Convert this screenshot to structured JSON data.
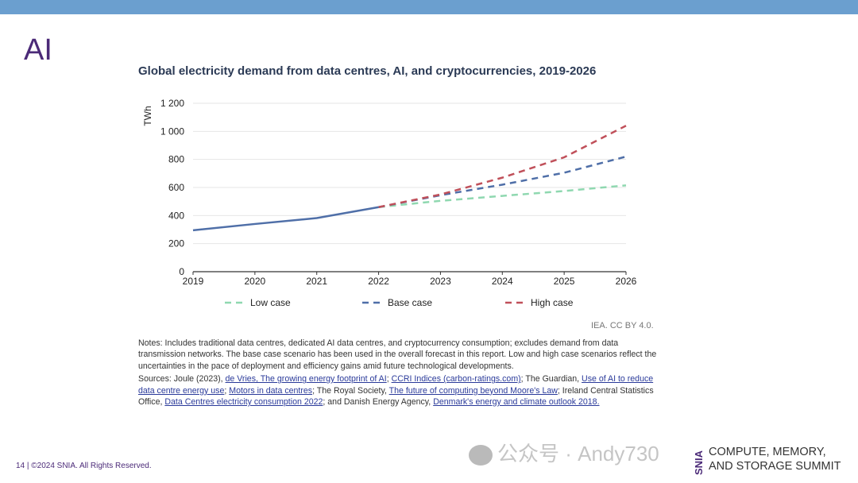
{
  "slide": {
    "title": "AI",
    "footer": "14 | ©2024 SNIA. All Rights Reserved."
  },
  "colors": {
    "topbar": "#6b9fcf",
    "history": "#4f6fa8",
    "low": "#8fd8b0",
    "base": "#4f6fa8",
    "high": "#c0505a"
  },
  "chart_data": {
    "type": "line",
    "title": "Global electricity demand from data centres, AI, and cryptocurrencies, 2019-2026",
    "ylabel": "TWh",
    "xlabel": "",
    "ylim": [
      0,
      1200
    ],
    "yticks": [
      "0",
      "200",
      "400",
      "600",
      "800",
      "1 000",
      "1 200"
    ],
    "ytick_values": [
      0,
      200,
      400,
      600,
      800,
      1000,
      1200
    ],
    "x": [
      2019,
      2020,
      2021,
      2022,
      2023,
      2024,
      2025,
      2026
    ],
    "grid": true,
    "legend_position": "bottom",
    "history": {
      "x": [
        2019,
        2020,
        2021,
        2022
      ],
      "values": [
        295,
        340,
        382,
        460
      ]
    },
    "series": [
      {
        "name": "Low case",
        "x": [
          2022,
          2023,
          2024,
          2025,
          2026
        ],
        "values": [
          460,
          505,
          540,
          575,
          615
        ],
        "style": "dashed",
        "color": "#8fd8b0"
      },
      {
        "name": "Base case",
        "x": [
          2022,
          2023,
          2024,
          2025,
          2026
        ],
        "values": [
          460,
          545,
          620,
          705,
          820
        ],
        "style": "dashed",
        "color": "#4f6fa8"
      },
      {
        "name": "High case",
        "x": [
          2022,
          2023,
          2024,
          2025,
          2026
        ],
        "values": [
          460,
          550,
          670,
          815,
          1040
        ],
        "style": "dashed",
        "color": "#c0505a"
      }
    ]
  },
  "credit": "IEA. CC BY 4.0.",
  "notes": {
    "text": "Notes: Includes traditional data centres, dedicated AI data centres, and cryptocurrency consumption; excludes demand from data transmission networks. The base case scenario has been used in the overall forecast in this report. Low and high case scenarios reflect the uncertainties in the pace of deployment and efficiency gains amid future technological developments.",
    "sources_prefix": "Sources: Joule (2023), ",
    "link1": "de Vries, The growing energy footprint of AI",
    "sep1": "; ",
    "link2": "CCRI Indices (carbon-ratings.com)",
    "sep2": "; The Guardian, ",
    "link3": "Use of AI to reduce data centre energy use",
    "sep3": "; ",
    "link4": "Motors in data centres",
    "sep4": "; The Royal Society, ",
    "link5": "The future of computing beyond Moore's Law",
    "sep5": "; Ireland Central Statistics Office, ",
    "link6": "Data Centres electricity consumption 2022",
    "sep6": "; and Danish Energy Agency, ",
    "link7": "Denmark's energy and climate outlook 2018."
  },
  "watermark": "公众号 · Andy730",
  "logo": {
    "brand": "SNIA",
    "line1": "COMPUTE, MEMORY,",
    "line2": "AND STORAGE SUMMIT"
  }
}
